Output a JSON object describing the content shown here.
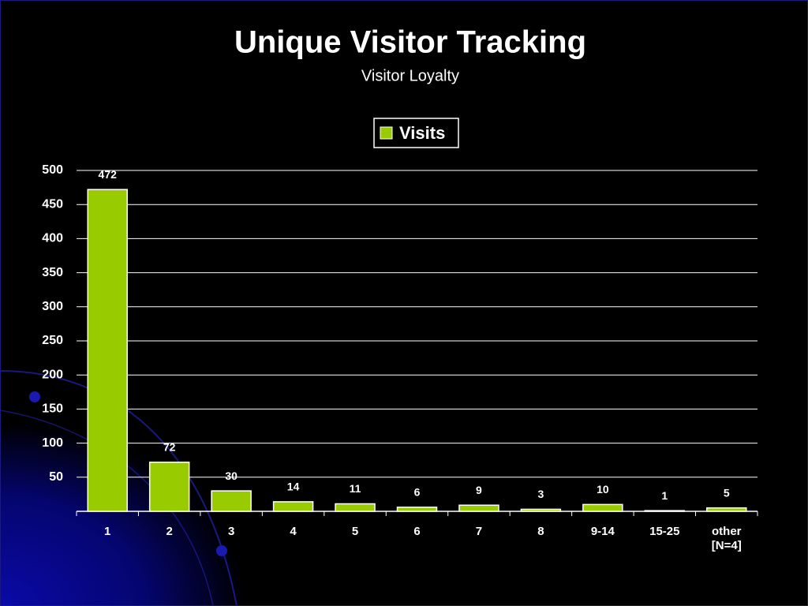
{
  "chart_data": {
    "type": "bar",
    "title": "Unique Visitor Tracking",
    "subtitle": "Visitor Loyalty",
    "categories": [
      "1",
      "2",
      "3",
      "4",
      "5",
      "6",
      "7",
      "8",
      "9-14",
      "15-25",
      "other\n[N=4]"
    ],
    "series": [
      {
        "name": "Visits",
        "color": "#99cc00",
        "values": [
          472,
          72,
          30,
          14,
          11,
          6,
          9,
          3,
          10,
          1,
          5
        ]
      }
    ],
    "ylim": [
      0,
      500
    ],
    "yticks": [
      50,
      100,
      150,
      200,
      250,
      300,
      350,
      400,
      450,
      500
    ],
    "grid": true,
    "legend": "top"
  }
}
